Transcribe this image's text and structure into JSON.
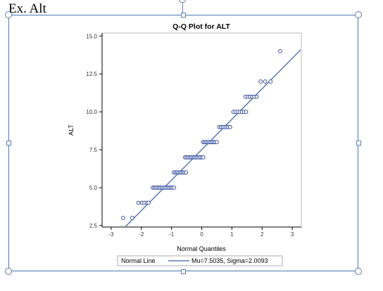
{
  "slide": {
    "caption": "Ex. Alt"
  },
  "colors": {
    "line": "#5b79b3",
    "marker": "#1f3a93",
    "frame": "#4a78b4"
  },
  "chart_data": {
    "type": "scatter",
    "title": "Q-Q Plot for ALT",
    "xlabel": "Normal Quantiles",
    "ylabel": "ALT",
    "xlim": [
      -3.3,
      3.3
    ],
    "ylim": [
      2.4,
      15.2
    ],
    "x_ticks": [
      -3,
      -2,
      -1,
      0,
      1,
      2,
      3
    ],
    "x_tick_labels": [
      "-3",
      "-2",
      "-1",
      "0",
      "1",
      "2",
      "3"
    ],
    "y_ticks": [
      2.5,
      5.0,
      7.5,
      10.0,
      12.5,
      15.0
    ],
    "y_tick_labels": [
      "2.5",
      "5.0",
      "7.5",
      "10.0",
      "12.5",
      "15.0"
    ],
    "grid": false,
    "legend": {
      "placement": "bottom",
      "title": "Normal Line",
      "entry": "Mu=7.5035, Sigma=2.0093"
    },
    "reference_line": {
      "mu": 7.5035,
      "sigma": 2.0093
    },
    "series": [
      {
        "name": "ALT",
        "points": [
          [
            -2.6,
            3
          ],
          [
            -2.3,
            3
          ],
          [
            -2.1,
            4
          ],
          [
            -1.98,
            4
          ],
          [
            -1.9,
            4
          ],
          [
            -1.82,
            4
          ],
          [
            -1.76,
            4
          ],
          [
            -1.62,
            5
          ],
          [
            -1.57,
            5
          ],
          [
            -1.52,
            5
          ],
          [
            -1.47,
            5
          ],
          [
            -1.42,
            5
          ],
          [
            -1.37,
            5
          ],
          [
            -1.32,
            5
          ],
          [
            -1.27,
            5
          ],
          [
            -1.22,
            5
          ],
          [
            -1.17,
            5
          ],
          [
            -1.12,
            5
          ],
          [
            -1.07,
            5
          ],
          [
            -1.02,
            5
          ],
          [
            -0.97,
            5
          ],
          [
            -0.92,
            5
          ],
          [
            -0.92,
            6
          ],
          [
            -0.87,
            6
          ],
          [
            -0.82,
            6
          ],
          [
            -0.77,
            6
          ],
          [
            -0.72,
            6
          ],
          [
            -0.67,
            6
          ],
          [
            -0.62,
            6
          ],
          [
            -0.57,
            6
          ],
          [
            -0.52,
            6
          ],
          [
            -0.55,
            7
          ],
          [
            -0.5,
            7
          ],
          [
            -0.45,
            7
          ],
          [
            -0.4,
            7
          ],
          [
            -0.35,
            7
          ],
          [
            -0.3,
            7
          ],
          [
            -0.25,
            7
          ],
          [
            -0.2,
            7
          ],
          [
            -0.15,
            7
          ],
          [
            -0.1,
            7
          ],
          [
            -0.05,
            7
          ],
          [
            0.0,
            7
          ],
          [
            0.05,
            7
          ],
          [
            0.05,
            8
          ],
          [
            0.1,
            8
          ],
          [
            0.15,
            8
          ],
          [
            0.2,
            8
          ],
          [
            0.25,
            8
          ],
          [
            0.3,
            8
          ],
          [
            0.35,
            8
          ],
          [
            0.4,
            8
          ],
          [
            0.45,
            8
          ],
          [
            0.5,
            8
          ],
          [
            0.58,
            9
          ],
          [
            0.64,
            9
          ],
          [
            0.7,
            9
          ],
          [
            0.76,
            9
          ],
          [
            0.82,
            9
          ],
          [
            0.88,
            9
          ],
          [
            0.94,
            9
          ],
          [
            1.05,
            10
          ],
          [
            1.12,
            10
          ],
          [
            1.19,
            10
          ],
          [
            1.26,
            10
          ],
          [
            1.33,
            10
          ],
          [
            1.4,
            10
          ],
          [
            1.47,
            10
          ],
          [
            1.45,
            11
          ],
          [
            1.53,
            11
          ],
          [
            1.6,
            11
          ],
          [
            1.67,
            11
          ],
          [
            1.74,
            11
          ],
          [
            1.82,
            11
          ],
          [
            1.95,
            12
          ],
          [
            2.1,
            12
          ],
          [
            2.28,
            12
          ],
          [
            2.6,
            14
          ]
        ]
      }
    ]
  }
}
